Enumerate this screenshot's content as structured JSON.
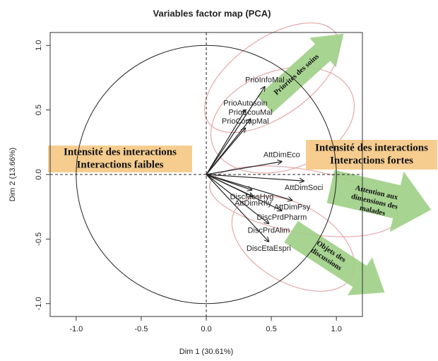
{
  "chart_data": {
    "type": "pca",
    "title": "Variables factor map (PCA)",
    "xlabel": "Dim 1 (30.61%)",
    "ylabel": "Dim 2 (13.66%)",
    "xlim": [
      -1.2,
      1.2
    ],
    "ylim": [
      -1.1,
      1.1
    ],
    "xticks": [
      {
        "value": -1,
        "label": "-1.0"
      },
      {
        "value": -0.5,
        "label": "-0.5"
      },
      {
        "value": 0,
        "label": "0.0"
      },
      0.5,
      {
        "value": 1,
        "label": "1.0"
      }
    ],
    "yticks": [
      {
        "value": -1,
        "label": "-1.0"
      },
      {
        "value": -0.5,
        "label": "-0.5"
      },
      {
        "value": 0,
        "label": "0.0"
      },
      0.5,
      {
        "value": 1,
        "label": "1.0"
      }
    ],
    "color": "#222222",
    "points": [
      {
        "label": "PrioInfoMal",
        "x": 0.45,
        "y": 0.68
      },
      {
        "label": "PrioAutosoin",
        "x": 0.3,
        "y": 0.5
      },
      {
        "label": "PrioEcouMal",
        "x": 0.34,
        "y": 0.43
      },
      {
        "label": "PrioCompMal",
        "x": 0.3,
        "y": 0.36
      },
      {
        "label": "AttDimEco",
        "x": 0.58,
        "y": 0.1
      },
      {
        "label": "AttDimSoci",
        "x": 0.75,
        "y": -0.05
      },
      {
        "label": "DiscMesHyg",
        "x": 0.35,
        "y": -0.12
      },
      {
        "label": "AttDimRhy",
        "x": 0.36,
        "y": -0.17
      },
      {
        "label": "AttDimPsy",
        "x": 0.66,
        "y": -0.2
      },
      {
        "label": "DiscPrdPharm",
        "x": 0.58,
        "y": -0.28
      },
      {
        "label": "DiscPrdAlim",
        "x": 0.48,
        "y": -0.38
      },
      {
        "label": "DiscEtaEspri",
        "x": 0.48,
        "y": -0.52
      }
    ],
    "annotations": {
      "left_box": [
        "Intensité des interactions",
        "Interactions faibles"
      ],
      "right_box": [
        "Intensité des interactions",
        "Interactions fortes"
      ],
      "arrow_care": [
        "Priorités des soins"
      ],
      "arrow_attention": [
        "Attention aux",
        "dimensions des",
        "malades"
      ],
      "arrow_objects": [
        "Objets des",
        "discussions"
      ]
    }
  }
}
